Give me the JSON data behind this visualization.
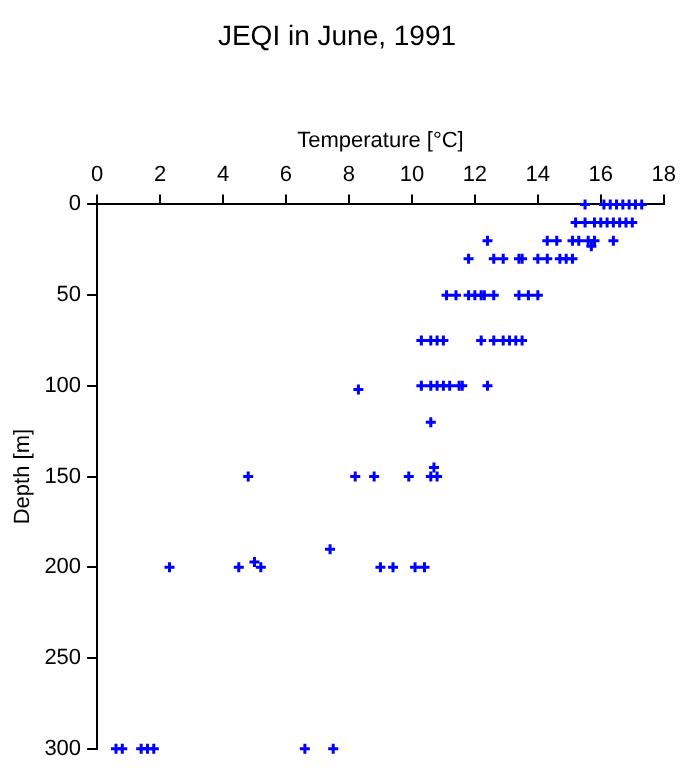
{
  "chart_data": {
    "type": "scatter",
    "title": "JEQI in June, 1991",
    "xlabel": "Temperature [°C]",
    "ylabel": "Depth [m]",
    "x": [
      15.5,
      16.1,
      16.3,
      16.5,
      16.7,
      16.9,
      17.1,
      17.3,
      15.2,
      15.5,
      15.8,
      16.0,
      16.2,
      16.4,
      16.6,
      16.8,
      17.0,
      12.4,
      14.3,
      14.6,
      15.1,
      15.3,
      15.6,
      15.8,
      16.4,
      15.7,
      11.8,
      12.6,
      12.9,
      13.4,
      13.5,
      14.0,
      14.3,
      14.7,
      14.9,
      15.1,
      11.1,
      11.4,
      11.8,
      12.0,
      12.2,
      12.3,
      12.6,
      13.4,
      13.7,
      14.0,
      10.3,
      10.6,
      10.8,
      11.0,
      12.2,
      12.6,
      12.9,
      13.1,
      13.3,
      13.5,
      10.3,
      10.6,
      10.8,
      11.0,
      11.2,
      11.5,
      11.6,
      12.4,
      8.3,
      10.6,
      10.7,
      4.8,
      8.2,
      8.8,
      9.9,
      10.6,
      10.8,
      7.4,
      2.3,
      4.5,
      5.0,
      5.2,
      9.0,
      9.4,
      10.1,
      10.4,
      0.6,
      0.8,
      1.4,
      1.6,
      1.8,
      6.6,
      7.5
    ],
    "series": [
      {
        "color": "#0000ff",
        "values": [
          0,
          0,
          0,
          0,
          0,
          0,
          0,
          0,
          10,
          10,
          10,
          10,
          10,
          10,
          10,
          10,
          10,
          20,
          20,
          20,
          20,
          20,
          20,
          20,
          20,
          23,
          30,
          30,
          30,
          30,
          30,
          30,
          30,
          30,
          30,
          30,
          50,
          50,
          50,
          50,
          50,
          50,
          50,
          50,
          50,
          50,
          75,
          75,
          75,
          75,
          75,
          75,
          75,
          75,
          75,
          75,
          100,
          100,
          100,
          100,
          100,
          100,
          100,
          100,
          102,
          120,
          145,
          150,
          150,
          150,
          150,
          150,
          150,
          190,
          200,
          200,
          197,
          200,
          200,
          200,
          200,
          200,
          300,
          300,
          300,
          300,
          300,
          300,
          300
        ]
      }
    ],
    "xlim": [
      0,
      18
    ],
    "xticks": [
      0,
      2,
      4,
      6,
      8,
      10,
      12,
      14,
      16,
      18
    ],
    "ylim": [
      300,
      0
    ],
    "yticks": [
      0,
      50,
      100,
      150,
      200,
      250,
      300
    ],
    "grid": false,
    "legend": false,
    "marker": "cross"
  }
}
